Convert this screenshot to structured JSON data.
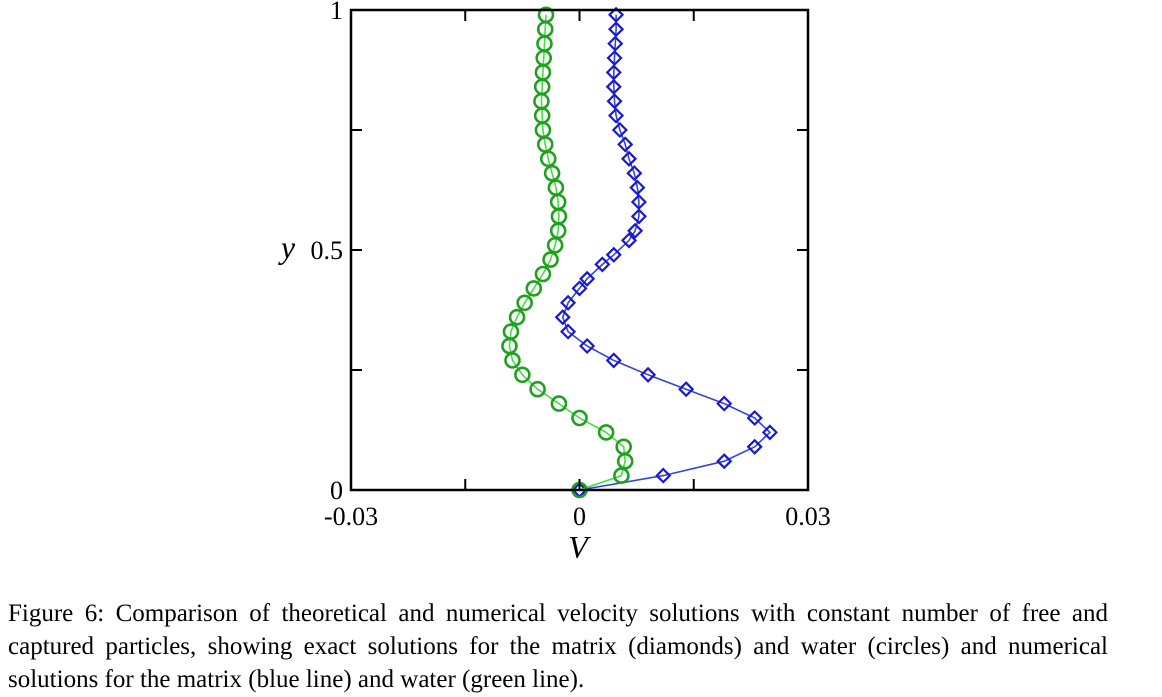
{
  "chart_data": {
    "type": "line",
    "xlabel": "V",
    "ylabel": "y",
    "xlim": [
      -0.03,
      0.03
    ],
    "ylim": [
      0,
      1
    ],
    "x_ticks": [
      {
        "value": -0.03,
        "label": "-0.03"
      },
      {
        "value": 0,
        "label": "0"
      },
      {
        "value": 0.03,
        "label": "0.03"
      }
    ],
    "y_ticks": [
      {
        "value": 0,
        "label": "0"
      },
      {
        "value": 0.5,
        "label": "0.5"
      },
      {
        "value": 1,
        "label": "1"
      }
    ],
    "minor_x_ticks": [
      -0.015,
      0.015
    ],
    "minor_y_ticks": [
      0.25,
      0.75
    ],
    "series": [
      {
        "key": "matrix",
        "marker": "diamond",
        "color": "#1a1acc",
        "line_color": "#3344dd",
        "points": [
          [
            0,
            0
          ],
          [
            0.011,
            0.03
          ],
          [
            0.019,
            0.06
          ],
          [
            0.023,
            0.09
          ],
          [
            0.025,
            0.12
          ],
          [
            0.023,
            0.15
          ],
          [
            0.019,
            0.18
          ],
          [
            0.014,
            0.21
          ],
          [
            0.009,
            0.24
          ],
          [
            0.0045,
            0.27
          ],
          [
            0.001,
            0.3
          ],
          [
            -0.0015,
            0.33
          ],
          [
            -0.0022,
            0.36
          ],
          [
            -0.0015,
            0.39
          ],
          [
            0,
            0.42
          ],
          [
            0.001,
            0.44
          ],
          [
            0.003,
            0.47
          ],
          [
            0.0045,
            0.49
          ],
          [
            0.0065,
            0.52
          ],
          [
            0.0073,
            0.54
          ],
          [
            0.0078,
            0.57
          ],
          [
            0.0078,
            0.6
          ],
          [
            0.0076,
            0.63
          ],
          [
            0.0072,
            0.66
          ],
          [
            0.0065,
            0.69
          ],
          [
            0.006,
            0.72
          ],
          [
            0.0053,
            0.75
          ],
          [
            0.0048,
            0.78
          ],
          [
            0.0046,
            0.81
          ],
          [
            0.0045,
            0.84
          ],
          [
            0.0045,
            0.87
          ],
          [
            0.0046,
            0.9
          ],
          [
            0.0047,
            0.93
          ],
          [
            0.0048,
            0.96
          ],
          [
            0.0048,
            0.99
          ]
        ]
      },
      {
        "key": "water",
        "marker": "circle",
        "color": "#1fa01f",
        "line_color": "#44dd44",
        "points": [
          [
            0,
            0
          ],
          [
            0.0055,
            0.03
          ],
          [
            0.006,
            0.06
          ],
          [
            0.0058,
            0.09
          ],
          [
            0.0035,
            0.12
          ],
          [
            0,
            0.15
          ],
          [
            -0.0027,
            0.18
          ],
          [
            -0.0055,
            0.21
          ],
          [
            -0.0075,
            0.24
          ],
          [
            -0.0088,
            0.27
          ],
          [
            -0.0092,
            0.3
          ],
          [
            -0.009,
            0.33
          ],
          [
            -0.0082,
            0.36
          ],
          [
            -0.0072,
            0.39
          ],
          [
            -0.006,
            0.42
          ],
          [
            -0.0048,
            0.45
          ],
          [
            -0.0038,
            0.48
          ],
          [
            -0.0032,
            0.51
          ],
          [
            -0.0028,
            0.54
          ],
          [
            -0.0027,
            0.57
          ],
          [
            -0.0028,
            0.6
          ],
          [
            -0.0031,
            0.63
          ],
          [
            -0.0036,
            0.66
          ],
          [
            -0.0041,
            0.69
          ],
          [
            -0.0045,
            0.72
          ],
          [
            -0.0048,
            0.75
          ],
          [
            -0.0049,
            0.78
          ],
          [
            -0.005,
            0.81
          ],
          [
            -0.0049,
            0.84
          ],
          [
            -0.0048,
            0.87
          ],
          [
            -0.0047,
            0.9
          ],
          [
            -0.0046,
            0.93
          ],
          [
            -0.0045,
            0.96
          ],
          [
            -0.0044,
            0.99
          ]
        ]
      }
    ]
  },
  "caption": "Figure 6: Comparison of theoretical and numerical velocity solutions with constant number of free and captured particles, showing exact solutions for the matrix (diamonds) and water (circles) and numerical solutions for the matrix (blue line) and water (green line)."
}
